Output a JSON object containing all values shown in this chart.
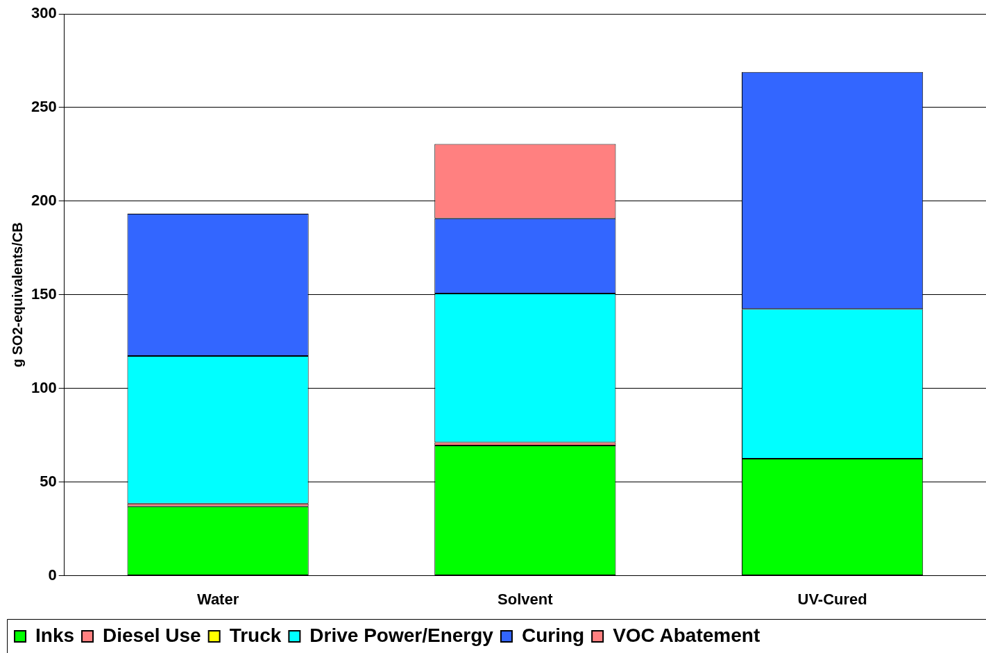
{
  "chart_data": {
    "type": "bar",
    "stacked": true,
    "ylabel": "g SO2-equivalents/CB",
    "categories": [
      "Water",
      "Solvent",
      "UV-Cured"
    ],
    "series": [
      {
        "name": "Inks",
        "color": "#00ff00",
        "values": [
          37,
          69.5,
          62.5
        ]
      },
      {
        "name": "Diesel Use",
        "color": "#ff8080",
        "values": [
          1.5,
          1.7,
          null
        ]
      },
      {
        "name": "Truck",
        "color": "#ffff00",
        "values": [
          null,
          null,
          null
        ]
      },
      {
        "name": "Drive Power/Energy",
        "color": "#00ffff",
        "values": [
          78.8,
          79.5,
          79.9
        ]
      },
      {
        "name": "Curing",
        "color": "#3366ff",
        "values": [
          76,
          40.1,
          126.6
        ]
      },
      {
        "name": "VOC Abatement",
        "color": "#ff8080",
        "values": [
          null,
          39.7,
          null
        ]
      }
    ],
    "ylim": [
      0,
      300
    ],
    "yticks": [
      0,
      50,
      100,
      150,
      200,
      250,
      300
    ],
    "grid": "y",
    "legend": "bottom"
  }
}
